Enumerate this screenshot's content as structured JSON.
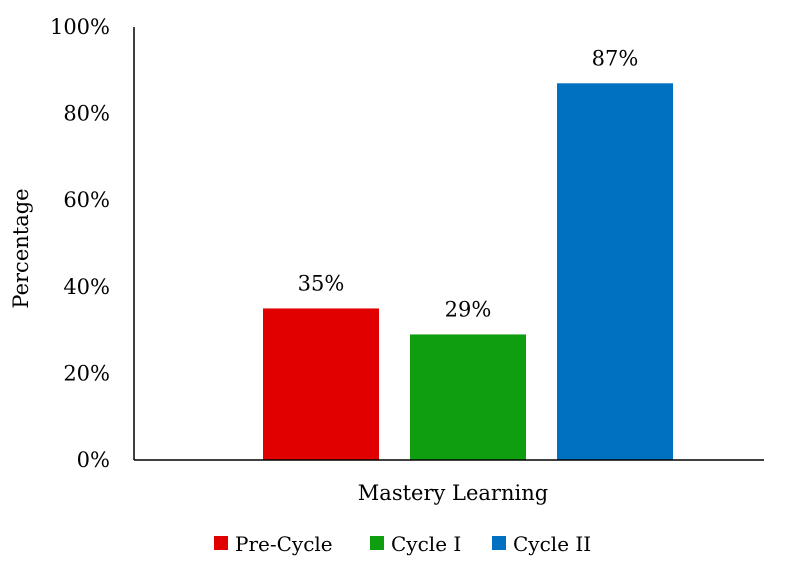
{
  "chart_data": {
    "type": "bar",
    "categories": [
      "Mastery Learning"
    ],
    "xlabel": "Mastery Learning",
    "ylabel": "Percentage",
    "ylim": [
      0,
      100
    ],
    "y_ticks": [
      0,
      20,
      40,
      60,
      80,
      100
    ],
    "y_tick_suffix": "%",
    "grid": false,
    "legend_position": "bottom",
    "series": [
      {
        "name": "Pre-Cycle",
        "values": [
          35
        ],
        "label": "35%",
        "color": "#e00000"
      },
      {
        "name": "Cycle I",
        "values": [
          29
        ],
        "label": "29%",
        "color": "#0f9e0f"
      },
      {
        "name": "Cycle II",
        "values": [
          87
        ],
        "label": "87%",
        "color": "#0070c0"
      }
    ]
  }
}
